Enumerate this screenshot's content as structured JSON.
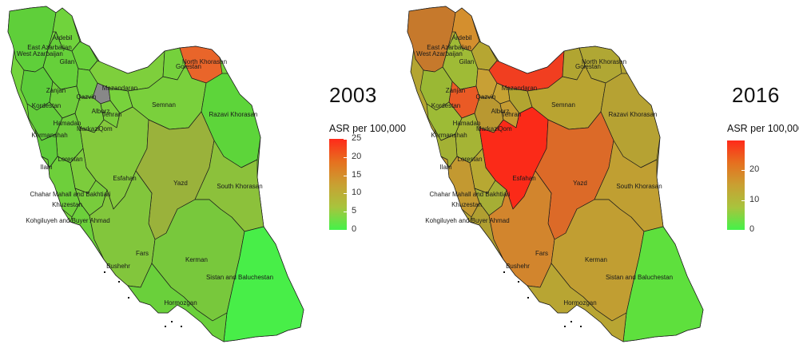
{
  "maps": [
    {
      "year": "2003",
      "legend": {
        "title": "ASR per 100,000",
        "min": 0,
        "max": 25,
        "ticks": [
          "25",
          "20",
          "15",
          "10",
          "5",
          "0"
        ],
        "gradient": [
          "#ff2a1a",
          "#e6701f",
          "#c9a032",
          "#a8c43d",
          "#44f24a"
        ]
      },
      "colors": {
        "base": "#73d43c",
        "north_west": "#5fcf3a",
        "ardebil": "#70d33c",
        "gilan": "#6ad13b",
        "zanjan": "#66d03a",
        "qazvin": "#6cd03b",
        "alborz": "#888888",
        "tehran": "#78d23c",
        "mazandaran": "#7ecf3c",
        "golestan": "#75d13c",
        "north_khorasan": "#e9652a",
        "razavi": "#5dd53a",
        "semnan": "#7ad03c",
        "kordestan": "#5ccc3a",
        "hamadan": "#6ecd3b",
        "markazi": "#76cf3c",
        "qom": "#7ace3c",
        "kermanshah": "#62cc3a",
        "lorestan": "#6ecc3b",
        "ilam": "#5fcb3a",
        "esfahan": "#84c93c",
        "yazd": "#9ab23b",
        "south_khorasan": "#8cc13b",
        "chahar": "#7ccc3c",
        "khuzestan": "#6ecf3b",
        "kohgiluyeh": "#78cc3c",
        "fars": "#82c63c",
        "bushehr": "#6cd03b",
        "kerman": "#78c83c",
        "sistan": "#48ee48",
        "hormozgan": "#6ad03b"
      }
    },
    {
      "year": "2016",
      "legend": {
        "title": "ASR per 100,000",
        "min": 0,
        "max": 30,
        "ticks": [
          "20",
          "10",
          "0"
        ],
        "gradient": [
          "#ff2a1a",
          "#e6701f",
          "#c9a032",
          "#a8c43d",
          "#44f24a"
        ]
      },
      "colors": {
        "base": "#b4a532",
        "north_west": "#c6792c",
        "ardebil": "#d48f2e",
        "gilan": "#b6a632",
        "zanjan": "#9fbb36",
        "qazvin": "#c8a035",
        "alborz": "#c6a233",
        "tehran": "#b2a531",
        "mazandaran": "#f13e20",
        "golestan": "#b1a531",
        "north_khorasan": "#b0a734",
        "razavi": "#b6a233",
        "semnan": "#b9a431",
        "kordestan": "#9ab834",
        "hamadan": "#ea5a25",
        "markazi": "#b99831",
        "qom": "#c49b32",
        "kermanshah": "#9dbb36",
        "lorestan": "#a5b435",
        "ilam": "#a3b134",
        "esfahan": "#fb2a18",
        "yazd": "#dc6a28",
        "south_khorasan": "#c09f32",
        "chahar": "#b7a832",
        "khuzestan": "#c39931",
        "kohgiluyeh": "#a6ae35",
        "fars": "#d2852d",
        "bushehr": "#b09f31",
        "kerman": "#c19e32",
        "sistan": "#5ee03d",
        "hormozgan": "#b8a533"
      }
    }
  ],
  "province_labels": [
    "Ardebil",
    "East Azarbaijan",
    "West Azarbaijan",
    "Gilan",
    "Zanjan",
    "Qazvin",
    "Alborz",
    "Tehran",
    "Mazandaran",
    "Golestan",
    "North Khorasan",
    "Razavi Khorasan",
    "Semnan",
    "Kordestan",
    "Hamadan",
    "Markazi",
    "Qom",
    "Kermanshah",
    "Lorestan",
    "Ilam",
    "Esfahan",
    "Yazd",
    "South Khorasan",
    "Chahar Mahall and Bakhtiari",
    "Khuzestan",
    "Kohgiluyeh and Buyer Ahmad",
    "Fars",
    "Bushehr",
    "Kerman",
    "Sistan and Baluchestan",
    "Hormozgan"
  ]
}
